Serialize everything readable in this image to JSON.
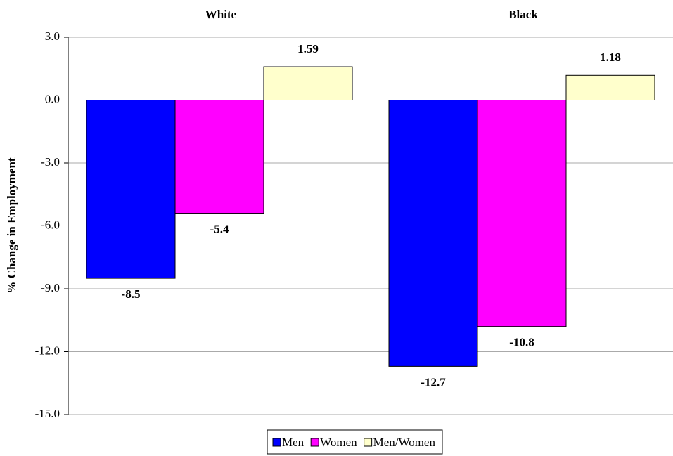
{
  "chart_data": {
    "type": "bar",
    "y_label": "% Change in Employment",
    "categories": [
      "White",
      "Black"
    ],
    "series": [
      {
        "name": "Men",
        "color": "#0000ff",
        "values": [
          -8.5,
          -12.7
        ]
      },
      {
        "name": "Women",
        "color": "#ff00ff",
        "values": [
          -5.4,
          -10.8
        ]
      },
      {
        "name": "Men/Women",
        "color": "#ffffcc",
        "values": [
          1.59,
          1.18
        ]
      }
    ],
    "ylim": [
      -15,
      3
    ],
    "yticks": [
      {
        "value": 3,
        "label": "3.0"
      },
      {
        "value": 0,
        "label": "0.0"
      },
      {
        "value": -3,
        "label": "-3.0"
      },
      {
        "value": -6,
        "label": "-6.0"
      },
      {
        "value": -9,
        "label": "-9.0"
      },
      {
        "value": -12,
        "label": "-12.0"
      },
      {
        "value": -15,
        "label": "-15.0"
      }
    ],
    "grid": true
  }
}
